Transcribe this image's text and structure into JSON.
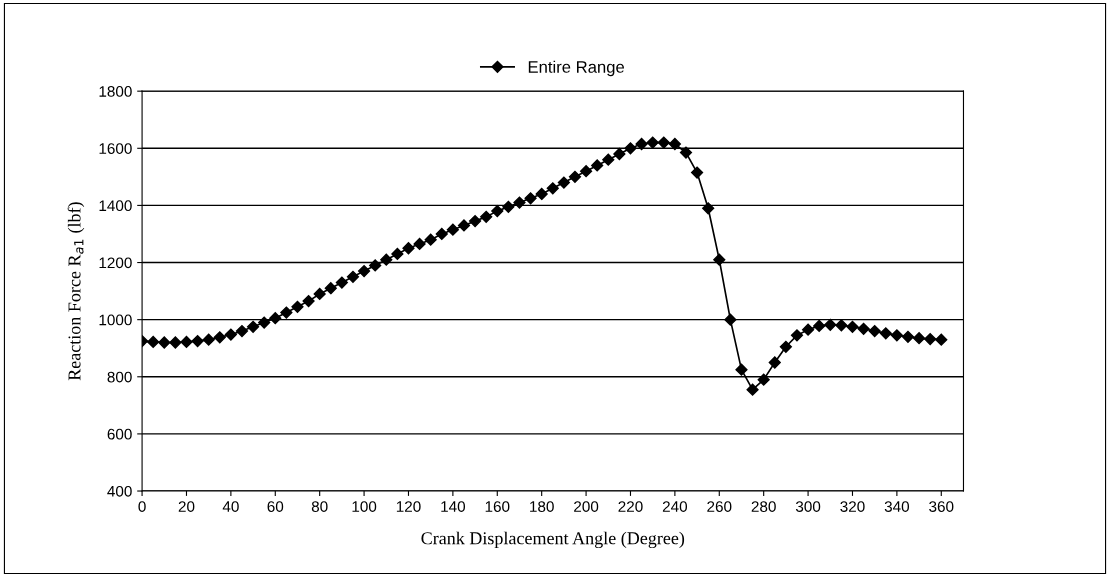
{
  "chart_data": {
    "type": "line",
    "xlabel": "Crank Displacement Angle (Degree)",
    "ylabel": "Reaction Force R$_{a1}$ (lbf)",
    "x": [
      0,
      5,
      10,
      15,
      20,
      25,
      30,
      35,
      40,
      45,
      50,
      55,
      60,
      65,
      70,
      75,
      80,
      85,
      90,
      95,
      100,
      105,
      110,
      115,
      120,
      125,
      130,
      135,
      140,
      145,
      150,
      155,
      160,
      165,
      170,
      175,
      180,
      185,
      190,
      195,
      200,
      205,
      210,
      215,
      220,
      225,
      230,
      235,
      240,
      245,
      250,
      255,
      260,
      265,
      270,
      275,
      280,
      285,
      290,
      295,
      300,
      305,
      310,
      315,
      320,
      325,
      330,
      335,
      340,
      345,
      350,
      355,
      360
    ],
    "series": [
      {
        "name": "Entire Range",
        "color": "#000000",
        "values": [
          925,
          922,
          920,
          920,
          922,
          925,
          930,
          938,
          948,
          960,
          975,
          990,
          1005,
          1025,
          1045,
          1065,
          1090,
          1110,
          1130,
          1150,
          1170,
          1190,
          1210,
          1230,
          1250,
          1265,
          1280,
          1300,
          1315,
          1330,
          1345,
          1360,
          1380,
          1395,
          1410,
          1425,
          1440,
          1460,
          1480,
          1500,
          1520,
          1540,
          1560,
          1580,
          1600,
          1615,
          1620,
          1620,
          1615,
          1585,
          1515,
          1390,
          1210,
          1000,
          825,
          755,
          790,
          850,
          905,
          945,
          965,
          978,
          982,
          980,
          975,
          968,
          960,
          952,
          945,
          940,
          935,
          932,
          930
        ]
      }
    ],
    "xlim": [
      0,
      370
    ],
    "xticks": [
      0,
      20,
      40,
      60,
      80,
      100,
      120,
      140,
      160,
      180,
      200,
      220,
      240,
      260,
      280,
      300,
      320,
      340,
      360
    ],
    "ylim": [
      400,
      1800
    ],
    "yticks": [
      400,
      600,
      800,
      1000,
      1200,
      1400,
      1600,
      1800
    ],
    "grid": "y",
    "legend": "top",
    "marker": "diamond",
    "line_style": "solid"
  }
}
